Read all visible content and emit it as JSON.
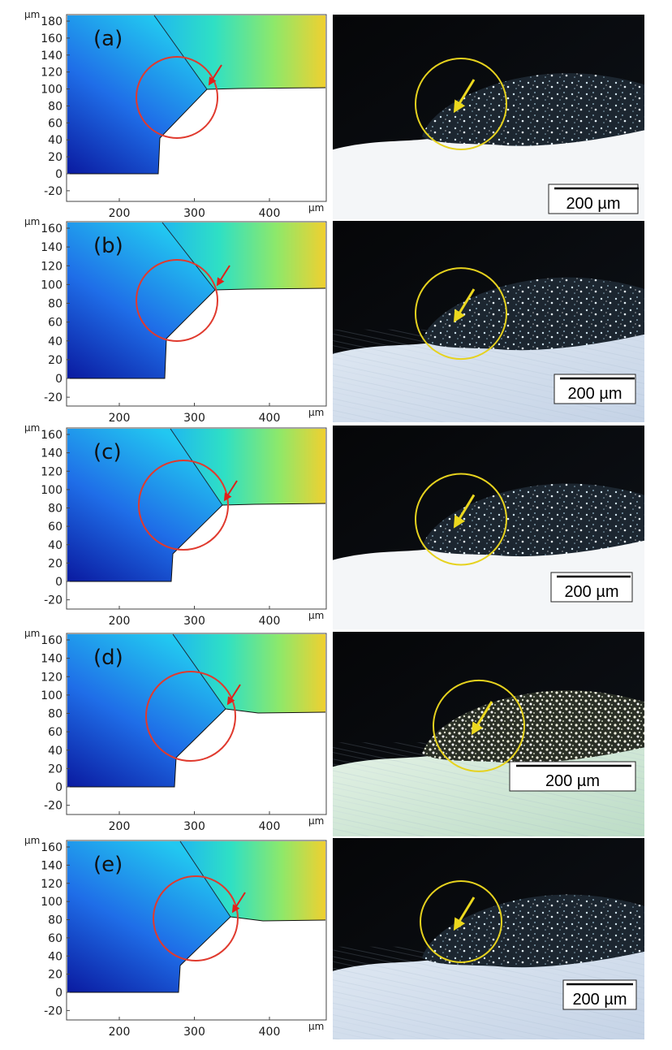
{
  "panels": [
    {
      "label": "(a)",
      "y_ticks": [
        "180",
        "160",
        "140",
        "120",
        "100",
        "80",
        "60",
        "40",
        "20",
        "0",
        "-20"
      ],
      "scale_bar": "200 µm"
    },
    {
      "label": "(b)",
      "y_ticks": [
        "160",
        "140",
        "120",
        "100",
        "80",
        "60",
        "40",
        "20",
        "0",
        "-20"
      ],
      "scale_bar": "200 µm"
    },
    {
      "label": "(c)",
      "y_ticks": [
        "160",
        "140",
        "120",
        "100",
        "80",
        "60",
        "40",
        "20",
        "0",
        "-20"
      ],
      "scale_bar": "200 µm"
    },
    {
      "label": "(d)",
      "y_ticks": [
        "160",
        "140",
        "120",
        "100",
        "80",
        "60",
        "40",
        "20",
        "0",
        "-20"
      ],
      "scale_bar": "200 µm"
    },
    {
      "label": "(e)",
      "y_ticks": [
        "160",
        "140",
        "120",
        "100",
        "80",
        "60",
        "40",
        "20",
        "0",
        "-20"
      ],
      "scale_bar": "200 µm"
    }
  ],
  "x_ticks": [
    "200",
    "300",
    "400"
  ],
  "unit_label": "µm",
  "colors": {
    "circle_sim": "#e03a2e",
    "arrow_sim": "#e0201a",
    "circle_photo": "#e6d21e",
    "arrow_photo": "#ecd81e"
  }
}
